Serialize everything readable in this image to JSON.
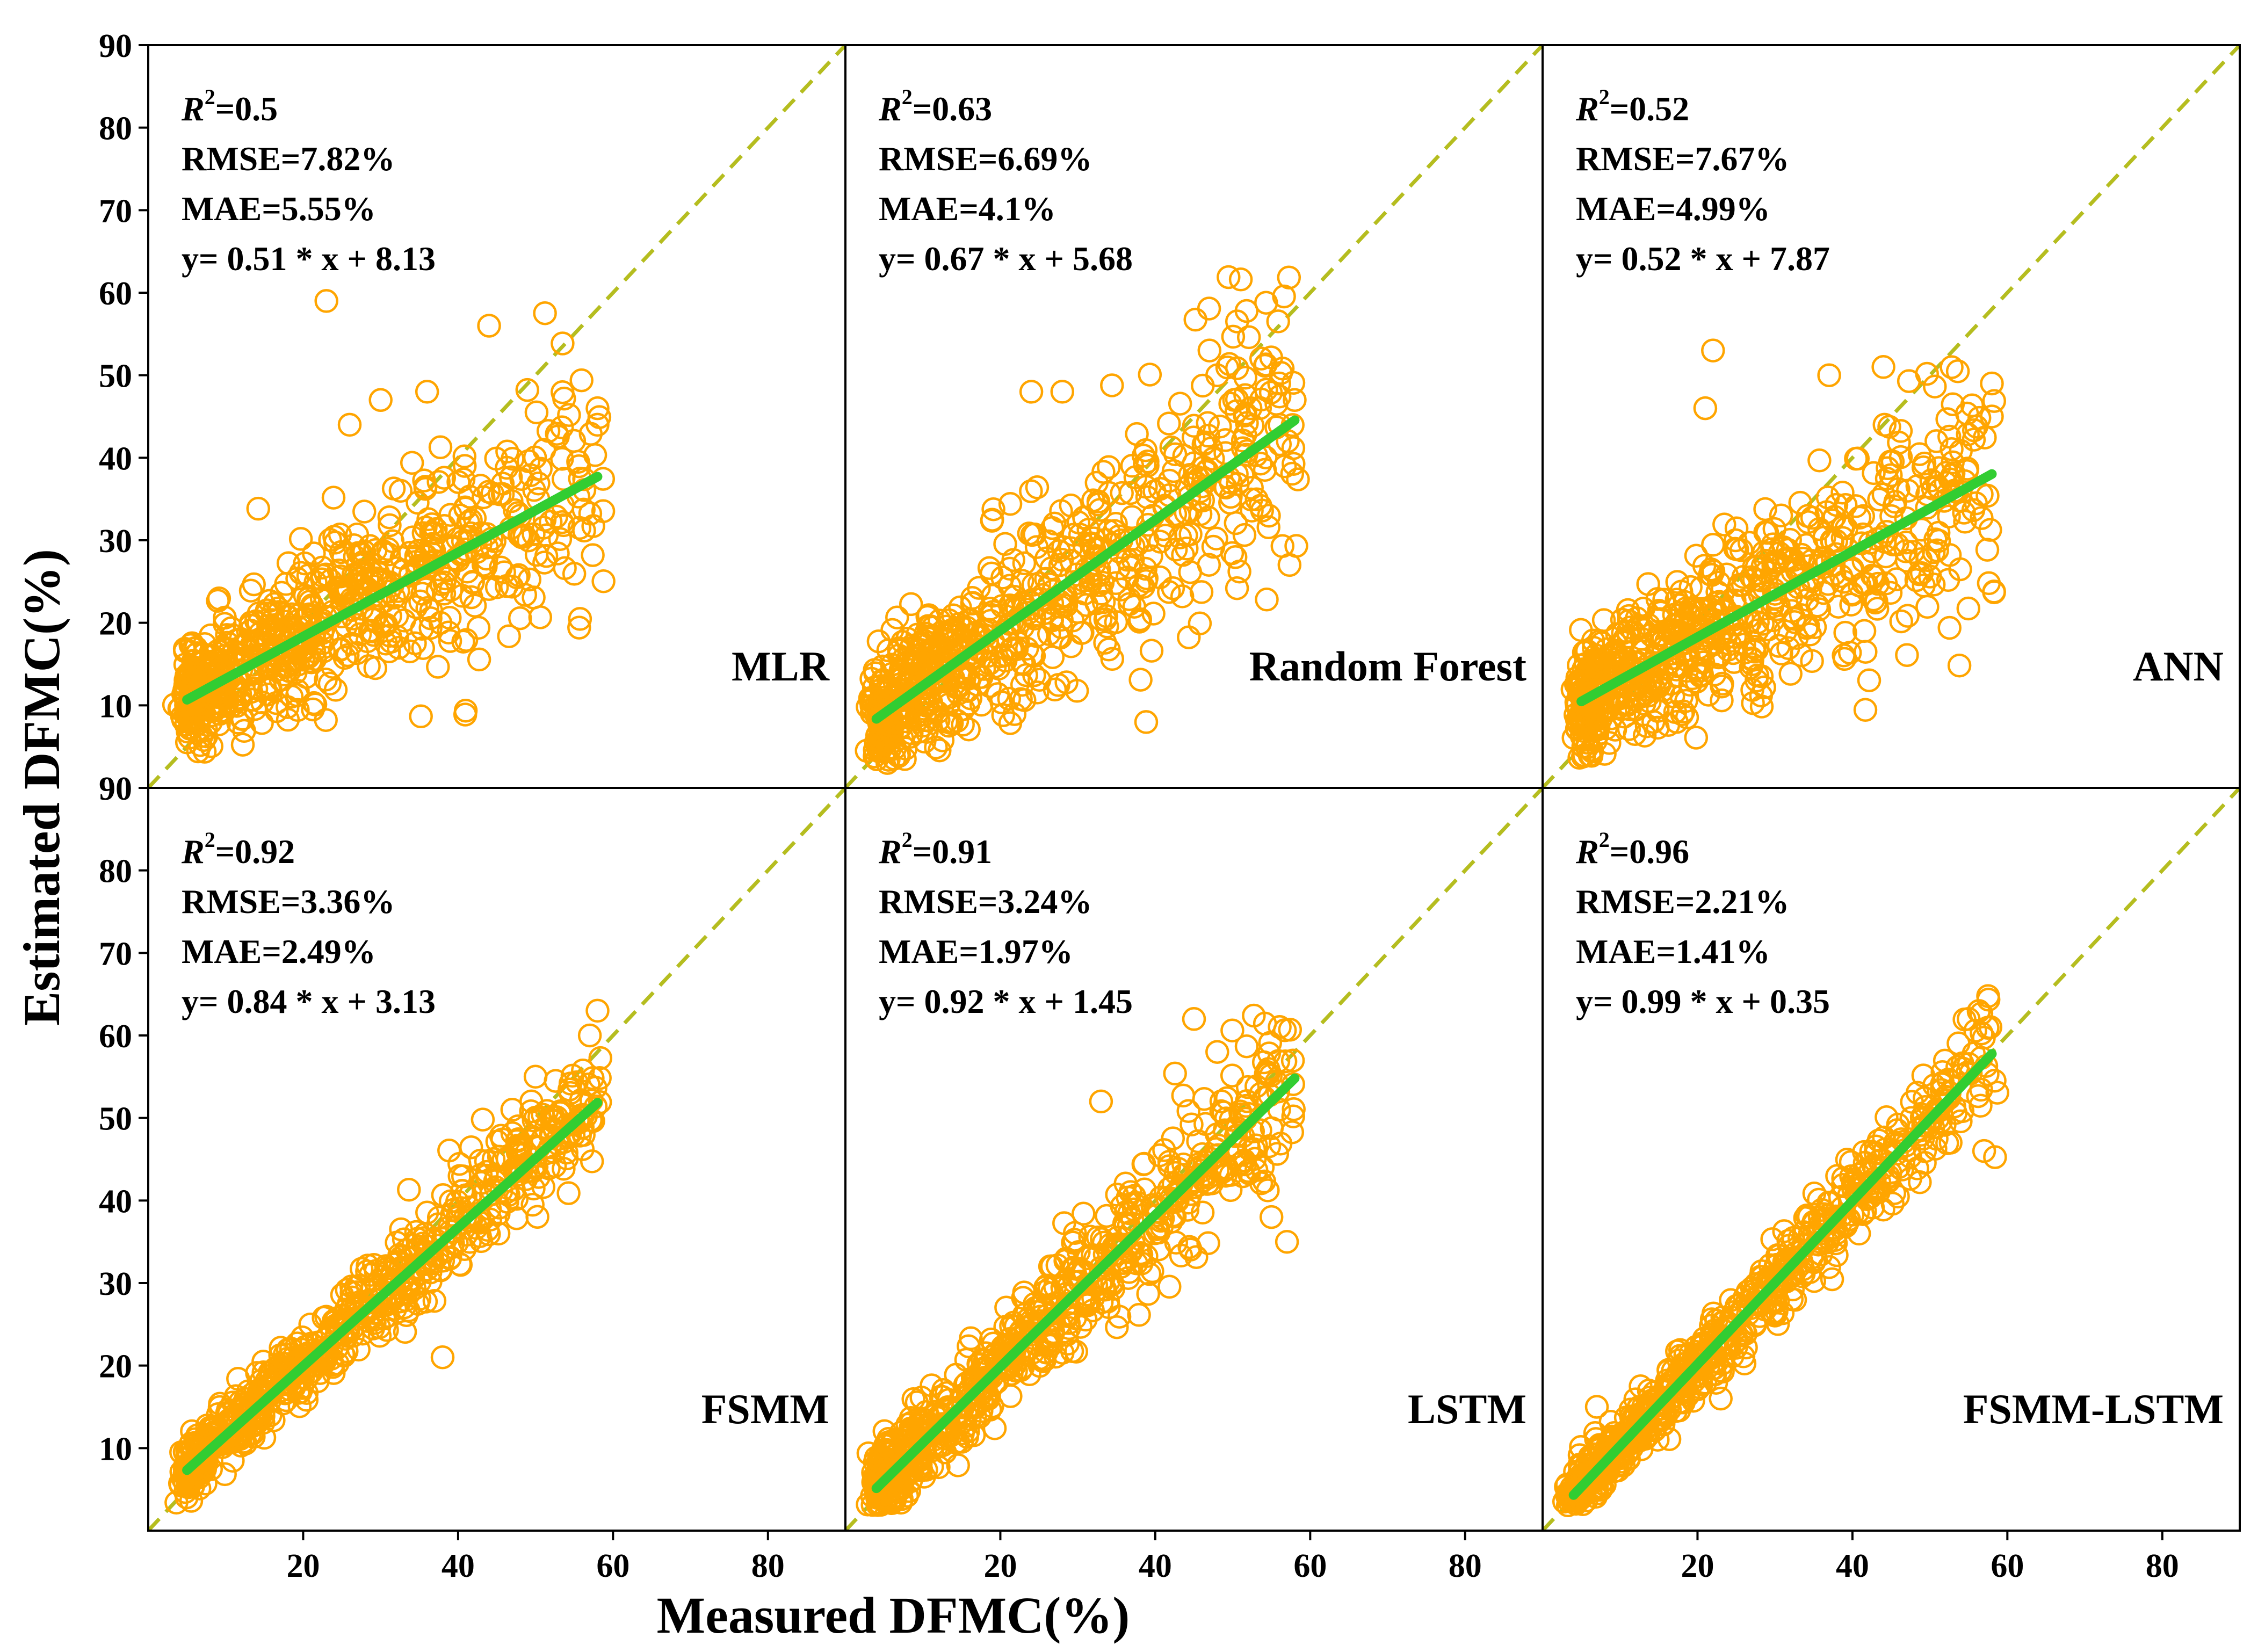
{
  "figure": {
    "xlabel": "Measured DFMC(%)",
    "ylabel": "Estimated DFMC(%)",
    "axis_range": [
      0,
      90
    ],
    "x_tick_labels": [
      "20",
      "40",
      "60",
      "80"
    ],
    "y_tick_labels_top": [
      "10",
      "20",
      "30",
      "40",
      "50",
      "60",
      "70",
      "80",
      "90"
    ],
    "y_tick_labels_bottom": [
      "10",
      "20",
      "30",
      "40",
      "50",
      "60",
      "70",
      "80",
      "90"
    ],
    "colors": {
      "scatter": "#FFA500",
      "fit_line": "#32CD32",
      "identity_line": "#B5BD1F"
    }
  },
  "chart_data": [
    {
      "type": "scatter",
      "model": "MLR",
      "r2_symbol": "R",
      "r2_value": "=0.5",
      "rmse": "RMSE=7.82%",
      "mae": "MAE=5.55%",
      "equation": "y= 0.51 * x + 8.13",
      "fit": {
        "slope": 0.51,
        "intercept": 8.13,
        "x_range": [
          5,
          58
        ]
      },
      "scatter": {
        "x_range": [
          5,
          58
        ],
        "slope": 0.51,
        "intercept": 8.13,
        "spread": 5.5,
        "n": 700,
        "outliers": [
          [
            23,
            59
          ],
          [
            44,
            56
          ],
          [
            26,
            44
          ],
          [
            30,
            47
          ],
          [
            36,
            48
          ],
          [
            58,
            46
          ],
          [
            58,
            44
          ]
        ]
      },
      "xlim": [
        0,
        90
      ],
      "ylim": [
        0,
        90
      ]
    },
    {
      "type": "scatter",
      "model": "Random Forest",
      "r2_symbol": "R",
      "r2_value": "=0.63",
      "rmse": "RMSE=6.69%",
      "mae": "MAE=4.1%",
      "equation": "y= 0.67 * x + 5.68",
      "fit": {
        "slope": 0.67,
        "intercept": 5.68,
        "x_range": [
          4,
          58
        ]
      },
      "scatter": {
        "x_range": [
          4,
          58
        ],
        "slope": 0.67,
        "intercept": 5.68,
        "spread": 6.5,
        "n": 700,
        "outliers": [
          [
            47,
            53
          ],
          [
            48,
            50
          ],
          [
            24,
            48
          ],
          [
            28,
            48
          ],
          [
            56,
            49
          ],
          [
            58,
            47
          ]
        ]
      },
      "xlim": [
        0,
        90
      ],
      "ylim": [
        0,
        90
      ]
    },
    {
      "type": "scatter",
      "model": "ANN",
      "r2_symbol": "R",
      "r2_value": "=0.52",
      "rmse": "RMSE=7.67%",
      "mae": "MAE=4.99%",
      "equation": "y= 0.52 * x + 7.87",
      "fit": {
        "slope": 0.52,
        "intercept": 7.87,
        "x_range": [
          5,
          58
        ]
      },
      "scatter": {
        "x_range": [
          5,
          58
        ],
        "slope": 0.52,
        "intercept": 7.87,
        "spread": 6.0,
        "n": 700,
        "outliers": [
          [
            22,
            53
          ],
          [
            44,
            51
          ],
          [
            37,
            50
          ],
          [
            58,
            49
          ],
          [
            58,
            45
          ],
          [
            21,
            46
          ]
        ]
      },
      "xlim": [
        0,
        90
      ],
      "ylim": [
        0,
        90
      ]
    },
    {
      "type": "scatter",
      "model": "FSMM",
      "r2_symbol": "R",
      "r2_value": "=0.92",
      "rmse": "RMSE=3.36%",
      "mae": "MAE=2.49%",
      "equation": "y= 0.84 * x + 3.13",
      "fit": {
        "slope": 0.84,
        "intercept": 3.13,
        "x_range": [
          5,
          58
        ]
      },
      "scatter": {
        "x_range": [
          5,
          58
        ],
        "slope": 0.84,
        "intercept": 3.13,
        "spread": 2.8,
        "n": 700,
        "outliers": [
          [
            58,
            63
          ],
          [
            57,
            60
          ],
          [
            47,
            51
          ],
          [
            50,
            55
          ],
          [
            38,
            21
          ]
        ]
      },
      "xlim": [
        0,
        90
      ],
      "ylim": [
        0,
        90
      ]
    },
    {
      "type": "scatter",
      "model": "LSTM",
      "r2_symbol": "R",
      "r2_value": "=0.91",
      "rmse": "RMSE=3.24%",
      "mae": "MAE=1.97%",
      "equation": "y= 0.92 * x + 1.45",
      "fit": {
        "slope": 0.92,
        "intercept": 1.45,
        "x_range": [
          4,
          58
        ]
      },
      "scatter": {
        "x_range": [
          4,
          58
        ],
        "slope": 0.92,
        "intercept": 1.45,
        "spread": 3.8,
        "n": 700,
        "outliers": [
          [
            45,
            62
          ],
          [
            33,
            52
          ],
          [
            48,
            58
          ],
          [
            57,
            35
          ],
          [
            55,
            38
          ]
        ]
      },
      "xlim": [
        0,
        90
      ],
      "ylim": [
        0,
        90
      ]
    },
    {
      "type": "scatter",
      "model": "FSMM-LSTM",
      "r2_symbol": "R",
      "r2_value": "=0.96",
      "rmse": "RMSE=2.21%",
      "mae": "MAE=1.41%",
      "equation": "y= 0.99 * x + 0.35",
      "fit": {
        "slope": 0.99,
        "intercept": 0.35,
        "x_range": [
          4,
          58
        ]
      },
      "scatter": {
        "x_range": [
          4,
          58
        ],
        "slope": 0.99,
        "intercept": 0.35,
        "spread": 2.4,
        "n": 700,
        "outliers": [
          [
            55,
            62
          ],
          [
            57,
            46
          ],
          [
            23,
            16
          ],
          [
            7,
            15
          ]
        ]
      },
      "xlim": [
        0,
        90
      ],
      "ylim": [
        0,
        90
      ]
    }
  ]
}
